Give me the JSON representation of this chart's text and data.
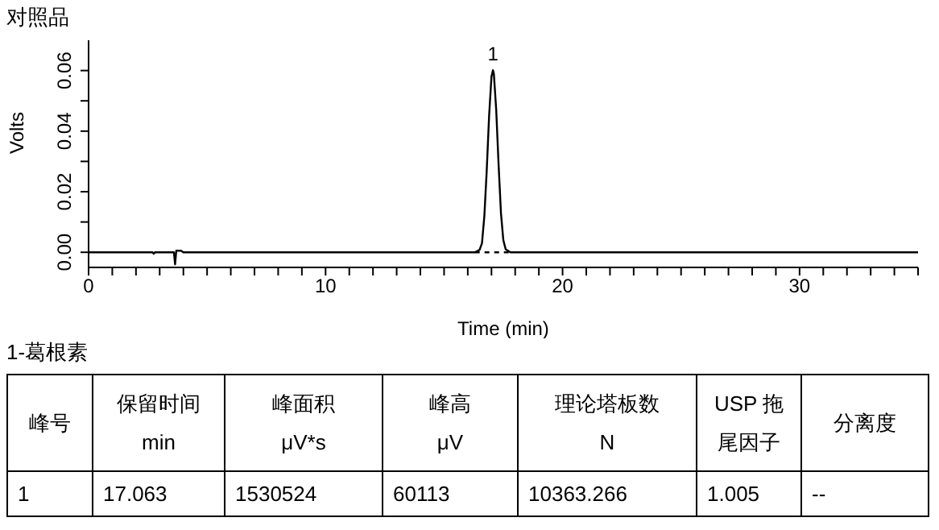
{
  "chart_data": {
    "type": "line",
    "title": "对照品",
    "xlabel": "Time (min)",
    "ylabel": "Volts",
    "xlim": [
      0,
      35
    ],
    "xticks": [
      0,
      {
        "value": 1,
        "label": null
      },
      {
        "value": 2,
        "label": null
      },
      {
        "value": 3,
        "label": null
      },
      {
        "value": 4,
        "label": null
      },
      {
        "value": 5,
        "label": null
      },
      {
        "value": 6,
        "label": null
      },
      {
        "value": 7,
        "label": null
      },
      {
        "value": 8,
        "label": null
      },
      {
        "value": 9,
        "label": null
      },
      10,
      {
        "value": 11,
        "label": null
      },
      {
        "value": 12,
        "label": null
      },
      {
        "value": 13,
        "label": null
      },
      {
        "value": 14,
        "label": null
      },
      {
        "value": 15,
        "label": null
      },
      {
        "value": 16,
        "label": null
      },
      {
        "value": 17,
        "label": null
      },
      {
        "value": 18,
        "label": null
      },
      {
        "value": 19,
        "label": null
      },
      20,
      {
        "value": 21,
        "label": null
      },
      {
        "value": 22,
        "label": null
      },
      {
        "value": 23,
        "label": null
      },
      {
        "value": 24,
        "label": null
      },
      {
        "value": 25,
        "label": null
      },
      {
        "value": 26,
        "label": null
      },
      {
        "value": 27,
        "label": null
      },
      {
        "value": 28,
        "label": null
      },
      {
        "value": 29,
        "label": null
      },
      30,
      {
        "value": 31,
        "label": null
      },
      {
        "value": 32,
        "label": null
      },
      {
        "value": 33,
        "label": null
      },
      {
        "value": 34,
        "label": null
      },
      {
        "value": 35,
        "label": null
      }
    ],
    "ylim": [
      -0.005,
      0.07
    ],
    "yticks": [
      {
        "value": 0,
        "label": "0.00"
      },
      {
        "value": 0.01,
        "label": null
      },
      {
        "value": 0.02,
        "label": "0.02"
      },
      {
        "value": 0.03,
        "label": null
      },
      {
        "value": 0.04,
        "label": "0.04"
      },
      {
        "value": 0.05,
        "label": null
      },
      {
        "value": 0.06,
        "label": "0.06"
      }
    ],
    "marker": "none",
    "series": [
      {
        "color": "#000000",
        "line_style": "solid",
        "x": [
          0,
          2.7,
          2.75,
          2.8,
          3.6,
          3.65,
          3.7,
          3.9,
          4.0,
          16.3,
          16.5,
          16.6,
          16.7,
          16.8,
          16.9,
          17.0,
          17.063,
          17.1,
          17.2,
          17.3,
          17.4,
          17.5,
          17.6,
          17.8,
          35
        ],
        "values": [
          0,
          0,
          -0.0005,
          0,
          0,
          -0.004,
          0.0005,
          0.0005,
          0,
          0,
          0.0008,
          0.003,
          0.012,
          0.027,
          0.045,
          0.058,
          0.0601,
          0.059,
          0.047,
          0.029,
          0.013,
          0.004,
          0.001,
          0,
          0
        ]
      },
      {
        "color": "#000000",
        "line_style": "dashed",
        "x": [
          16.3,
          17.8
        ],
        "values": [
          0,
          0
        ]
      }
    ],
    "annotations": [
      {
        "text": "1",
        "x": 17.063,
        "y": 0.0601
      },
      "1-葛根素",
      "峰号",
      "保留时间\nmin",
      "峰面积\nμV*s",
      "峰高\nμV",
      "理论塔板数\nN",
      "USP 拖尾因子",
      "分离度",
      "1",
      "17.063",
      "1530524",
      "60113",
      "10363.266",
      "1.005",
      "--"
    ]
  }
}
